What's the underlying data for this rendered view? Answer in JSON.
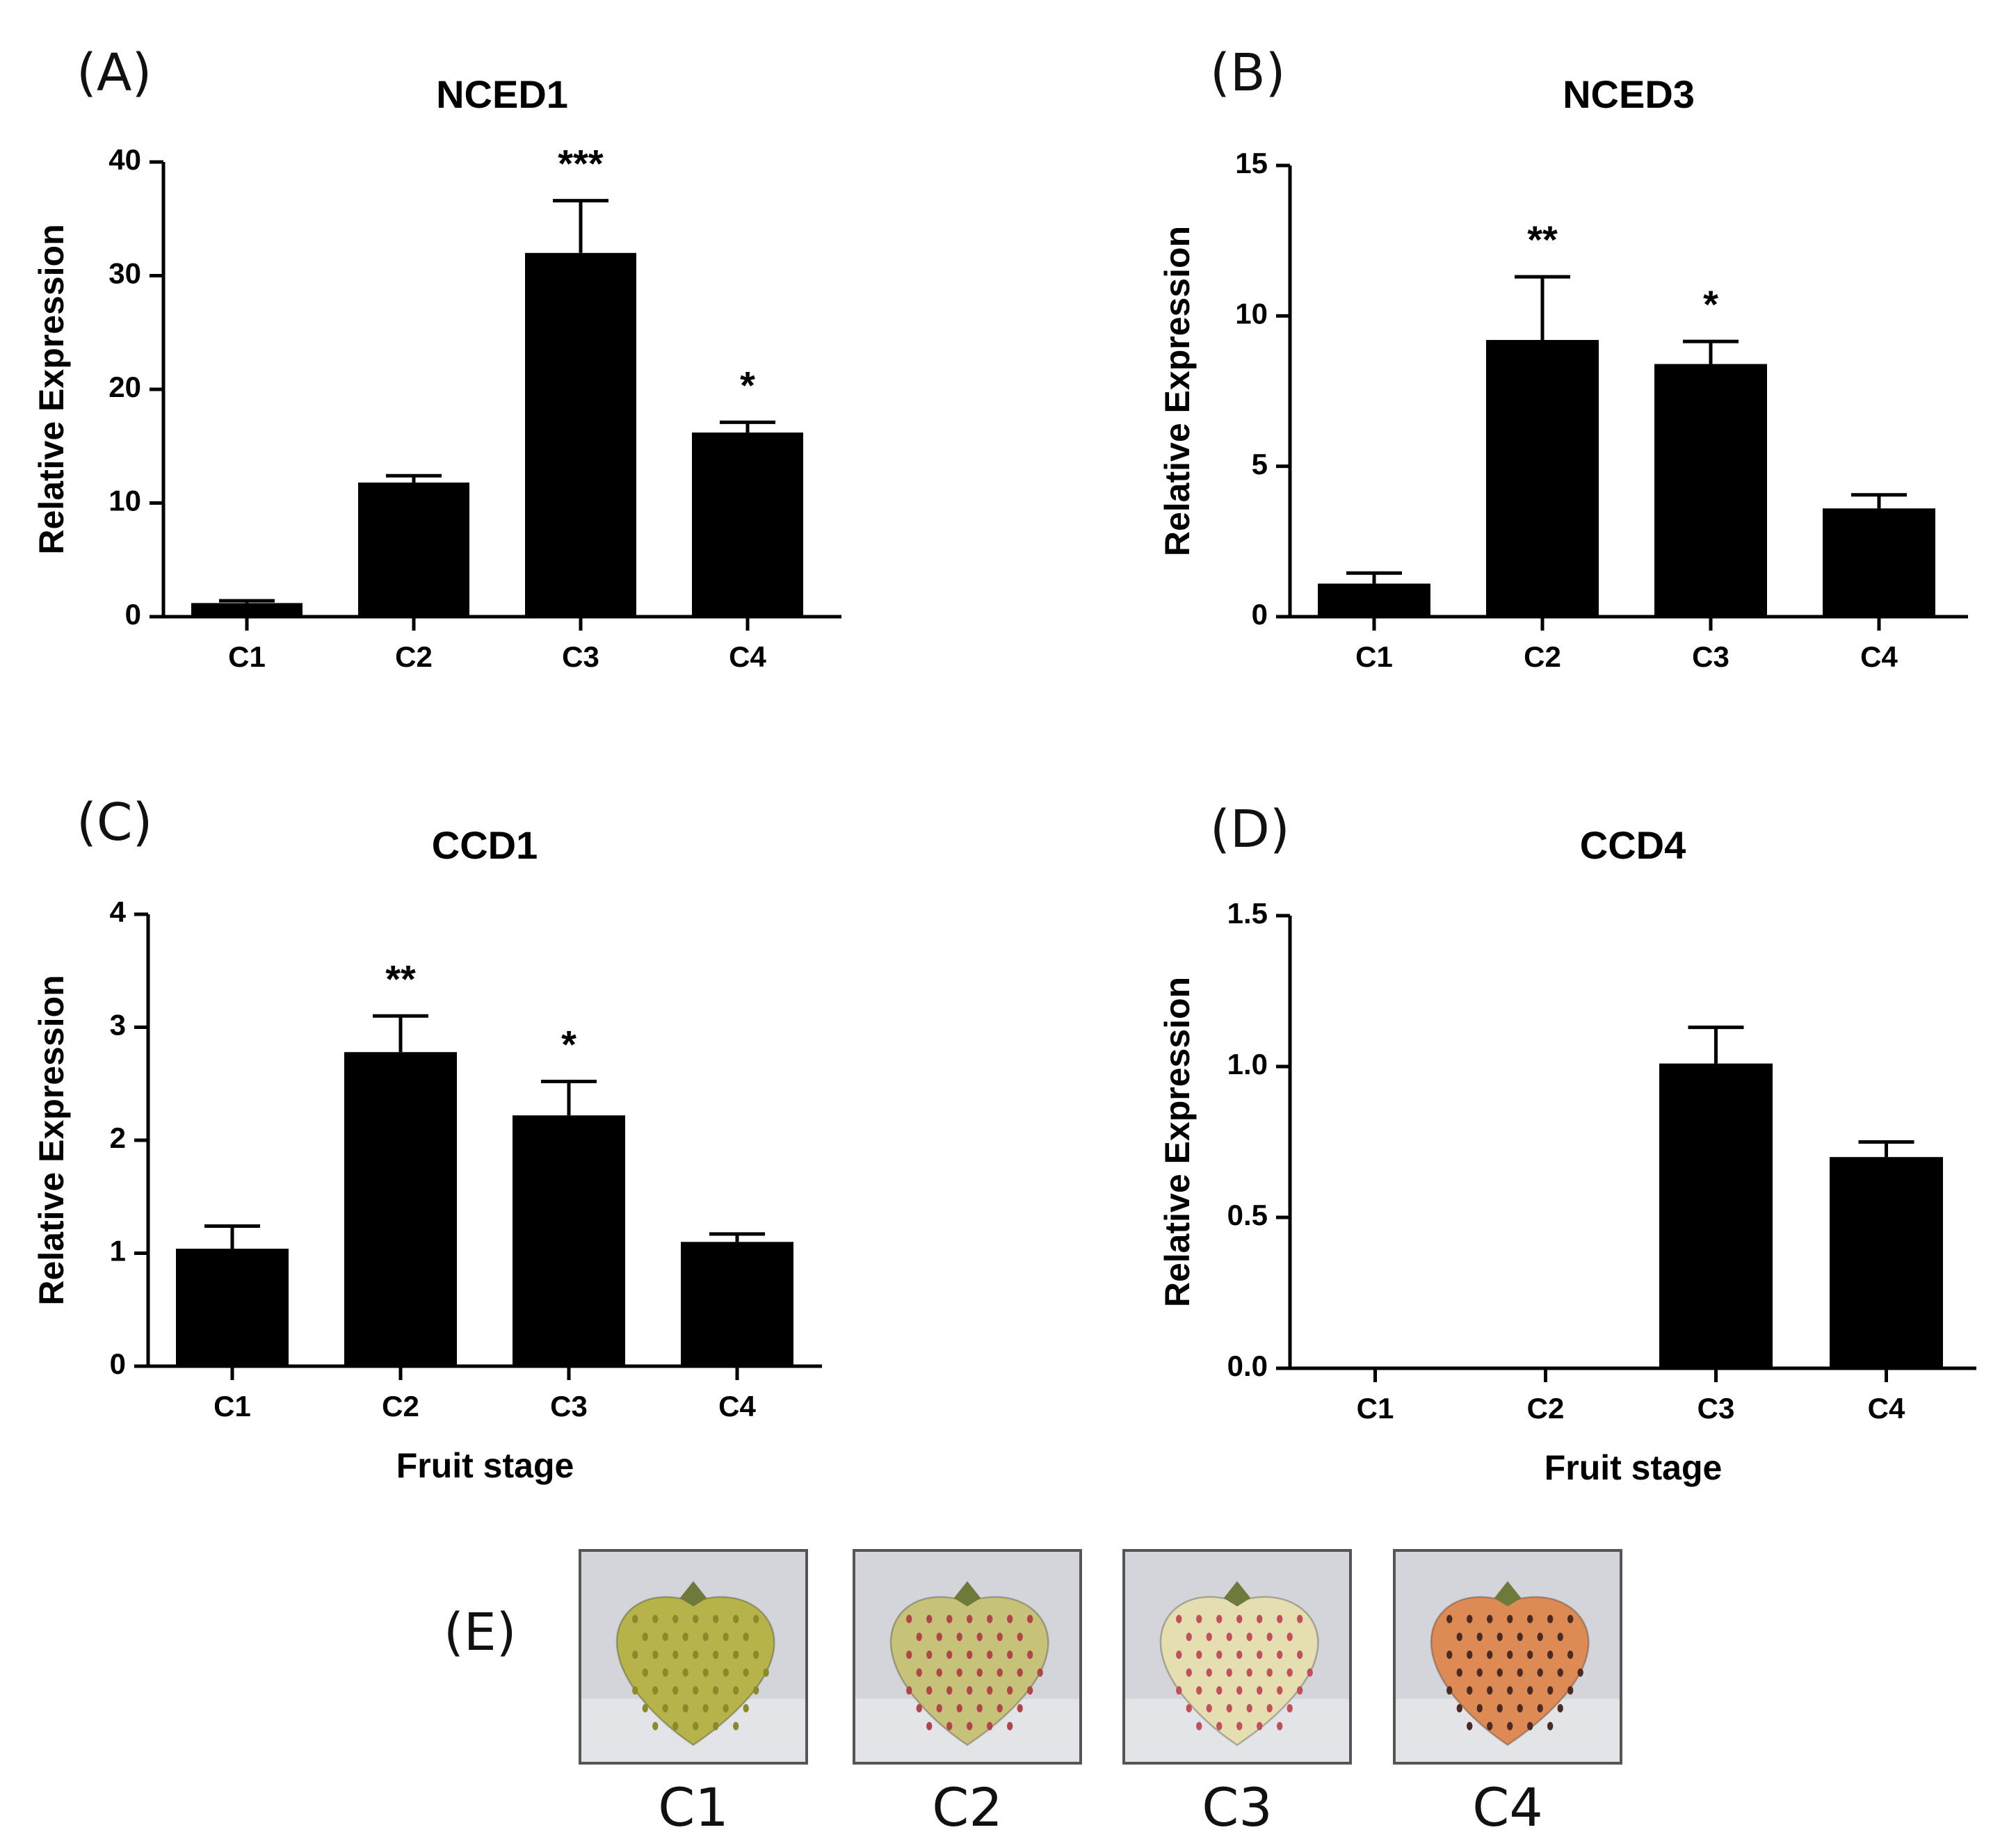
{
  "chart_data": [
    {
      "panel": "(A)",
      "type": "bar",
      "title": "NCED1",
      "categories": [
        "C1",
        "C2",
        "C3",
        "C4"
      ],
      "values": [
        1.2,
        11.8,
        32.0,
        16.2
      ],
      "errors": [
        0.2,
        0.6,
        4.6,
        0.9
      ],
      "significance": [
        "",
        "",
        "***",
        "*"
      ],
      "ylabel": "Relative Expression",
      "xlabel": "",
      "ylim": [
        0,
        40
      ],
      "yticks": [
        "0",
        "10",
        "20",
        "30",
        "40"
      ],
      "color": "#000000"
    },
    {
      "panel": "(B)",
      "type": "bar",
      "title": "NCED3",
      "categories": [
        "C1",
        "C2",
        "C3",
        "C4"
      ],
      "values": [
        1.1,
        9.2,
        8.4,
        3.6
      ],
      "errors": [
        0.35,
        2.1,
        0.75,
        0.45
      ],
      "significance": [
        "",
        "**",
        "*",
        ""
      ],
      "ylabel": "Relative Expression",
      "xlabel": "",
      "ylim": [
        0,
        15
      ],
      "yticks": [
        "0",
        "5",
        "10",
        "15"
      ],
      "color": "#000000"
    },
    {
      "panel": "(C)",
      "type": "bar",
      "title": "CCD1",
      "categories": [
        "C1",
        "C2",
        "C3",
        "C4"
      ],
      "values": [
        1.04,
        2.78,
        2.22,
        1.1
      ],
      "errors": [
        0.2,
        0.32,
        0.3,
        0.07
      ],
      "significance": [
        "",
        "**",
        "*",
        ""
      ],
      "ylabel": "Relative Expression",
      "xlabel": "Fruit stage",
      "ylim": [
        0,
        4
      ],
      "yticks": [
        "0",
        "1",
        "2",
        "3",
        "4"
      ],
      "color": "#000000"
    },
    {
      "panel": "(D)",
      "type": "bar",
      "title": "CCD4",
      "categories": [
        "C1",
        "C2",
        "C3",
        "C4"
      ],
      "values": [
        0,
        0,
        1.01,
        0.7
      ],
      "errors": [
        0,
        0,
        0.12,
        0.05
      ],
      "significance": [
        "",
        "",
        "",
        ""
      ],
      "ylabel": "Relative Expression",
      "xlabel": "Fruit stage",
      "ylim": [
        0,
        1.5
      ],
      "yticks": [
        "0.0",
        "0.5",
        "1.0",
        "1.5"
      ],
      "color": "#000000"
    }
  ],
  "photos": {
    "panel": "(E)",
    "items": [
      {
        "label": "C1",
        "fill": "#b5b34a",
        "seed": "#8a8a2a"
      },
      {
        "label": "C2",
        "fill": "#c7c27a",
        "seed": "#b0454a"
      },
      {
        "label": "C3",
        "fill": "#e4deb0",
        "seed": "#c0505a"
      },
      {
        "label": "C4",
        "fill": "#dd8a55",
        "seed": "#4a2a22"
      }
    ]
  }
}
